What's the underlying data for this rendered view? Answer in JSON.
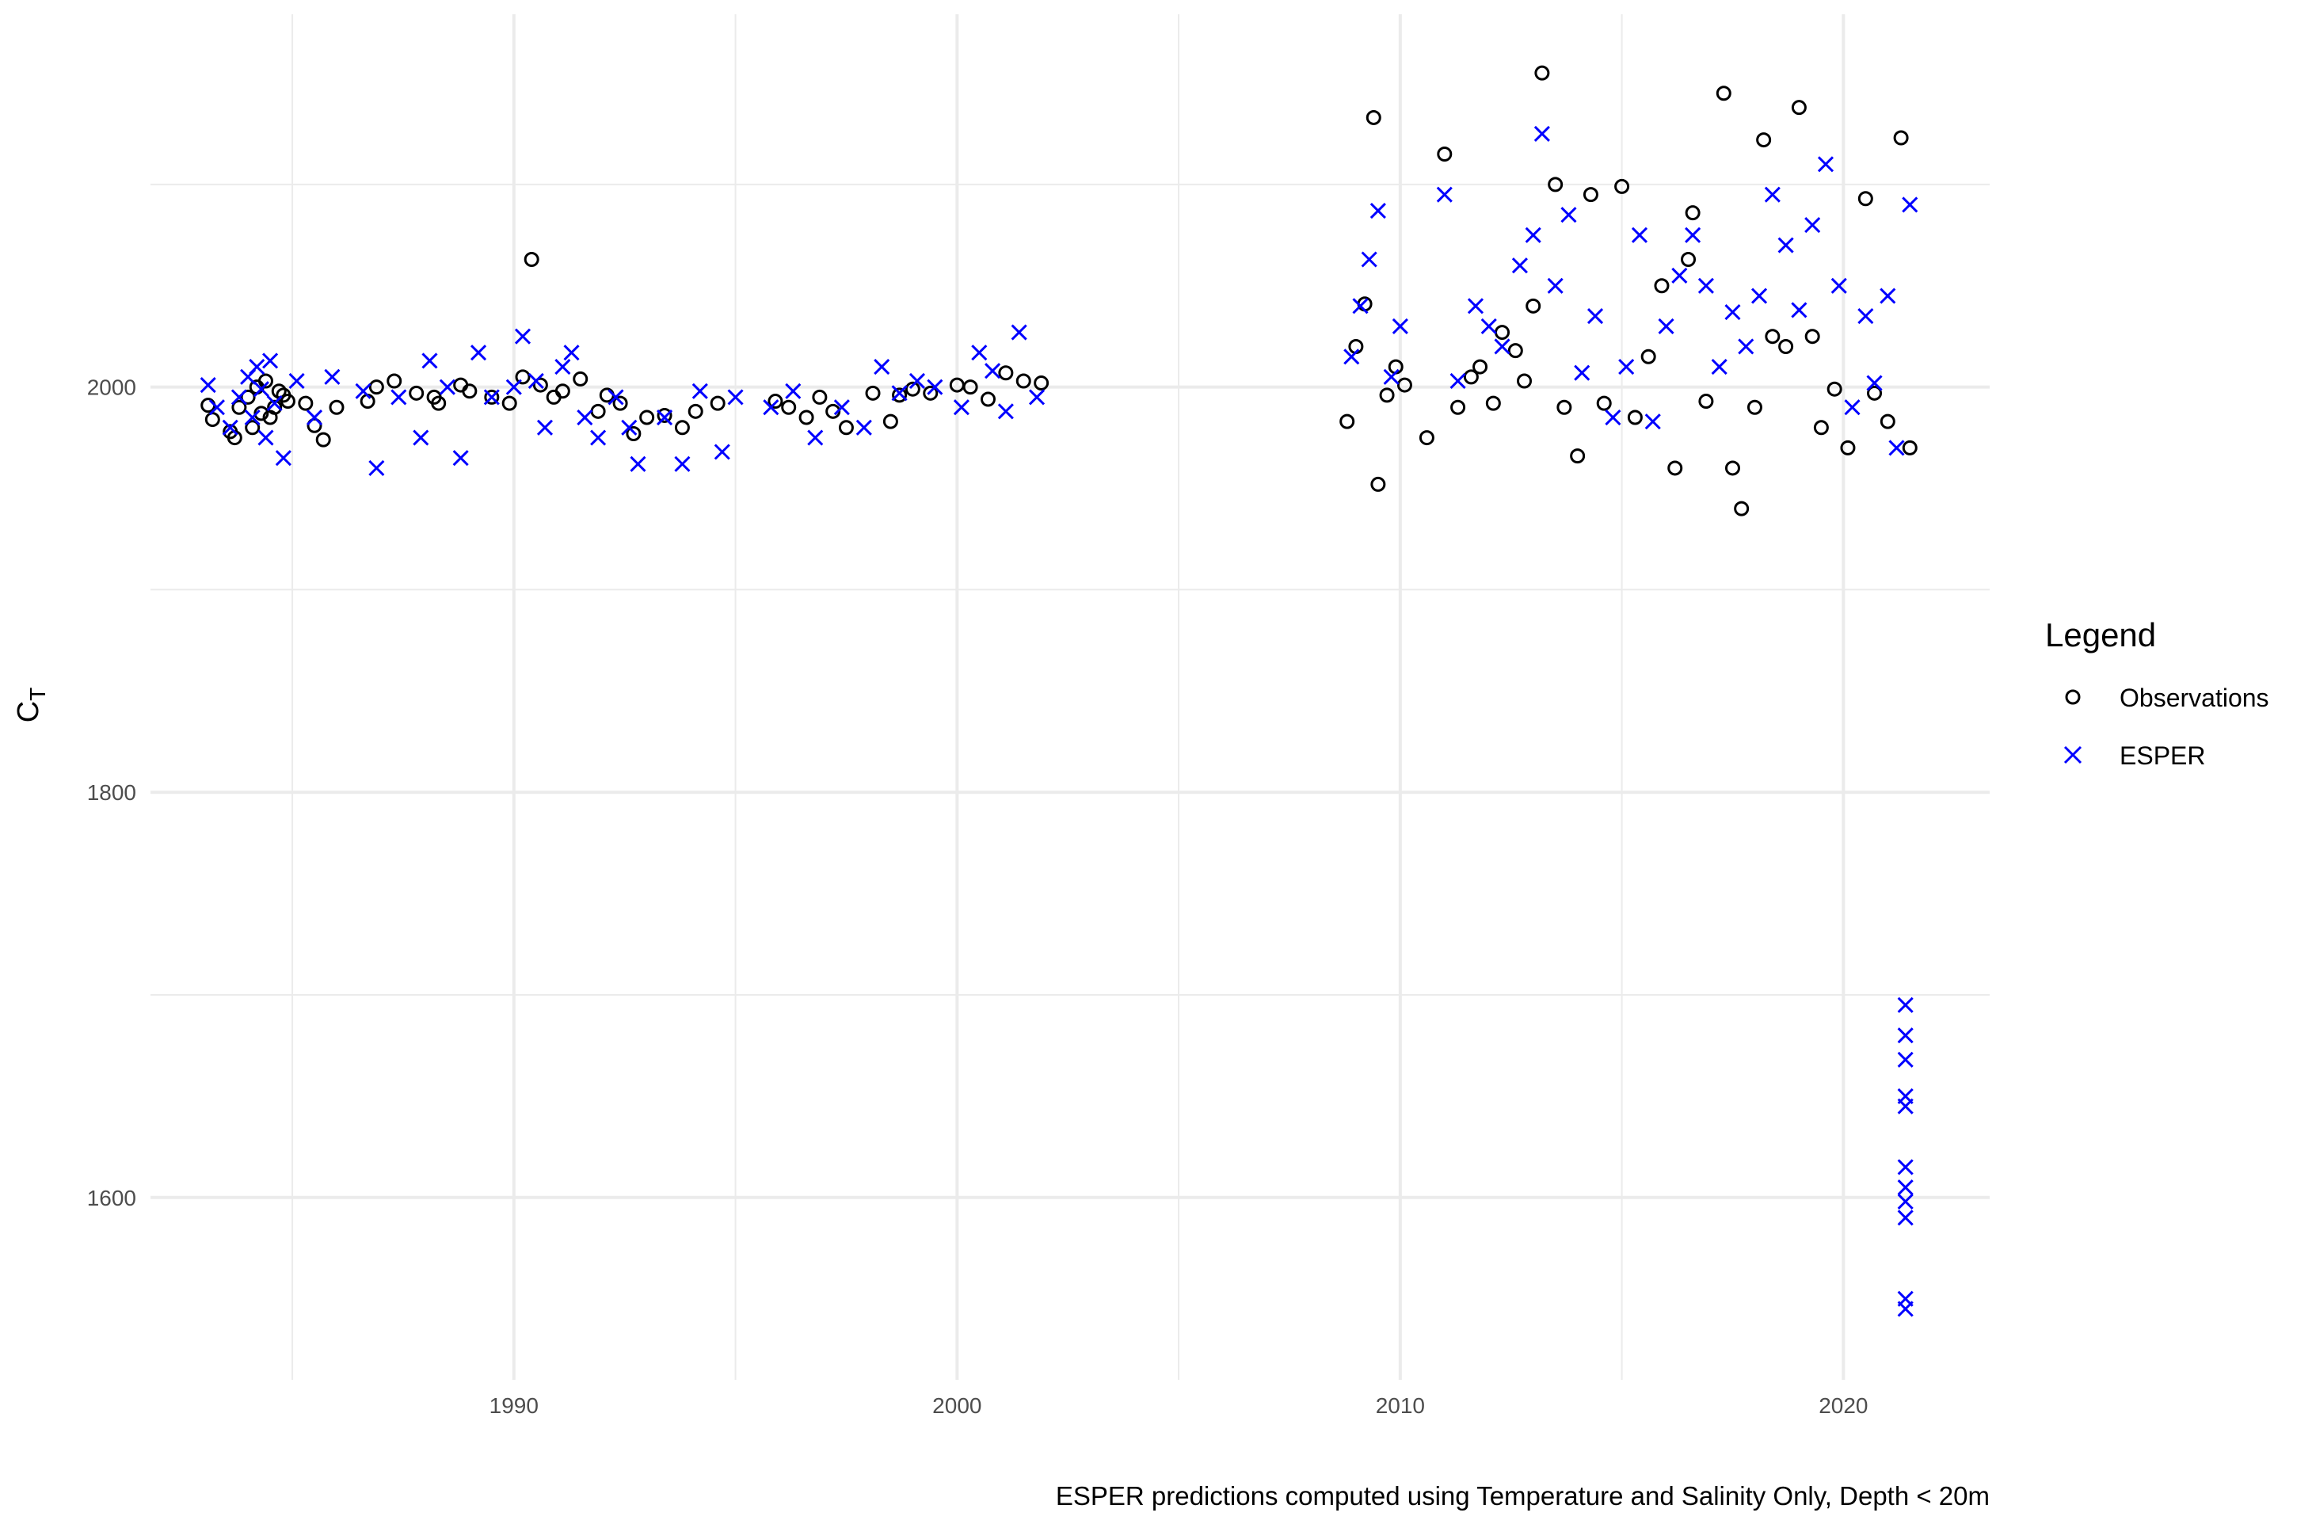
{
  "chart_data": {
    "type": "scatter",
    "title": "",
    "xlabel": "",
    "ylabel": "C",
    "ylabel_subscript": "T",
    "xlim": [
      1981.8,
      2023.3
    ],
    "ylim": [
      1510,
      2184
    ],
    "x_ticks": [
      1990,
      2000,
      2010,
      2020
    ],
    "x_tick_labels": [
      "1990",
      "2000",
      "2010",
      "2020"
    ],
    "x_minor_gridlines": [
      1985,
      1995,
      2005,
      2015
    ],
    "y_ticks": [
      1600,
      1800,
      2000
    ],
    "y_tick_labels": [
      "1600",
      "1800",
      "2000"
    ],
    "y_minor_gridlines": [
      1700,
      1900,
      2100
    ],
    "grid": true,
    "caption": "ESPER predictions computed using Temperature and Salinity Only, Depth < 20m",
    "legend": {
      "title": "Legend",
      "position": "right",
      "entries": [
        {
          "label": "Observations",
          "marker": "circle",
          "color": "#000000"
        },
        {
          "label": "ESPER",
          "marker": "x",
          "color": "#0000ff"
        }
      ]
    },
    "series": [
      {
        "name": "Observations",
        "marker": "circle",
        "color": "#000000",
        "x": [
          1983.1,
          1983.2,
          1983.6,
          1983.7,
          1983.8,
          1984.0,
          1984.1,
          1984.2,
          1984.3,
          1984.4,
          1984.5,
          1984.6,
          1984.7,
          1984.8,
          1984.9,
          1985.3,
          1985.5,
          1985.7,
          1986.0,
          1986.7,
          1986.9,
          1987.3,
          1987.8,
          1988.2,
          1988.3,
          1988.8,
          1989.0,
          1989.5,
          1989.9,
          1990.2,
          1990.4,
          1990.6,
          1990.9,
          1991.1,
          1991.5,
          1991.9,
          1992.1,
          1992.4,
          1992.7,
          1993.0,
          1993.4,
          1993.8,
          1994.1,
          1994.6,
          1995.9,
          1996.2,
          1996.6,
          1996.9,
          1997.2,
          1997.5,
          1998.1,
          1998.5,
          1998.7,
          1999.0,
          1999.4,
          2000.0,
          2000.3,
          2000.7,
          2001.1,
          2001.5,
          2001.9,
          2008.8,
          2009.0,
          2009.2,
          2009.4,
          2009.5,
          2009.7,
          2009.9,
          2010.1,
          2010.6,
          2011.0,
          2011.3,
          2011.6,
          2011.8,
          2012.1,
          2012.3,
          2012.6,
          2012.8,
          2013.0,
          2013.2,
          2013.5,
          2013.7,
          2014.0,
          2014.3,
          2014.6,
          2015.0,
          2015.3,
          2015.6,
          2015.9,
          2016.2,
          2016.5,
          2016.6,
          2016.9,
          2017.3,
          2017.5,
          2017.7,
          2018.0,
          2018.2,
          2018.4,
          2018.7,
          2019.0,
          2019.3,
          2019.5,
          2019.8,
          2020.1,
          2020.5,
          2020.7,
          2021.0,
          2021.3,
          2021.5
        ],
        "y": [
          1991,
          1984,
          1978,
          1975,
          1990,
          1995,
          1980,
          2000,
          1987,
          2003,
          1985,
          1990,
          1998,
          1996,
          1993,
          1992,
          1981,
          1974,
          1990,
          1993,
          2000,
          2003,
          1997,
          1995,
          1992,
          2001,
          1998,
          1995,
          1992,
          2005,
          2063,
          2001,
          1995,
          1998,
          2004,
          1988,
          1996,
          1992,
          1977,
          1985,
          1986,
          1980,
          1988,
          1992,
          1993,
          1990,
          1985,
          1995,
          1988,
          1980,
          1997,
          1983,
          1996,
          1999,
          1997,
          2001,
          2000,
          1994,
          2007,
          2003,
          2002,
          1983,
          2020,
          2041,
          2133,
          1952,
          1996,
          2010,
          2001,
          1975,
          2115,
          1990,
          2005,
          2010,
          1992,
          2027,
          2018,
          2003,
          2040,
          2155,
          2100,
          1990,
          1966,
          2095,
          1992,
          2099,
          1985,
          2015,
          2050,
          1960,
          2063,
          2086,
          1993,
          2145,
          1960,
          1940,
          1990,
          2122,
          2025,
          2020,
          2138,
          2025,
          1980,
          1999,
          1970,
          2093,
          1997,
          1983,
          2123,
          1970
        ]
      },
      {
        "name": "ESPER",
        "marker": "x",
        "color": "#0000ff",
        "x": [
          1983.1,
          1983.3,
          1983.6,
          1983.8,
          1984.0,
          1984.1,
          1984.2,
          1984.3,
          1984.4,
          1984.5,
          1984.6,
          1984.8,
          1985.1,
          1985.5,
          1985.9,
          1986.6,
          1986.9,
          1987.4,
          1987.9,
          1988.1,
          1988.5,
          1988.8,
          1989.2,
          1989.5,
          1990.0,
          1990.2,
          1990.5,
          1990.7,
          1991.1,
          1991.3,
          1991.6,
          1991.9,
          1992.3,
          1992.6,
          1992.8,
          1993.4,
          1993.8,
          1994.2,
          1994.7,
          1995.0,
          1995.8,
          1996.3,
          1996.8,
          1997.4,
          1997.9,
          1998.3,
          1998.7,
          1999.1,
          1999.5,
          2000.1,
          2000.5,
          2000.8,
          2001.1,
          2001.4,
          2001.8,
          2008.9,
          2009.1,
          2009.3,
          2009.5,
          2009.8,
          2010.0,
          2011.0,
          2011.3,
          2011.7,
          2012.0,
          2012.3,
          2012.7,
          2013.0,
          2013.2,
          2013.5,
          2013.8,
          2014.1,
          2014.4,
          2014.8,
          2015.1,
          2015.4,
          2015.7,
          2016.0,
          2016.3,
          2016.6,
          2016.9,
          2017.2,
          2017.5,
          2017.8,
          2018.1,
          2018.4,
          2018.7,
          2019.0,
          2019.3,
          2019.6,
          2019.9,
          2020.2,
          2020.5,
          2020.7,
          2021.0,
          2021.2,
          2021.4,
          2021.4,
          2021.4,
          2021.4,
          2021.4,
          2021.4,
          2021.4,
          2021.4,
          2021.4,
          2021.4,
          2021.4,
          2021.5
        ],
        "y": [
          2001,
          1990,
          1980,
          1995,
          2005,
          1985,
          2010,
          1999,
          1975,
          2013,
          1992,
          1965,
          2003,
          1985,
          2005,
          1998,
          1960,
          1995,
          1975,
          2013,
          2000,
          1965,
          2017,
          1995,
          2000,
          2025,
          2003,
          1980,
          2010,
          2017,
          1985,
          1975,
          1995,
          1980,
          1962,
          1985,
          1962,
          1998,
          1968,
          1995,
          1990,
          1998,
          1975,
          1990,
          1980,
          2010,
          1997,
          2003,
          2000,
          1990,
          2017,
          2008,
          1988,
          2027,
          1995,
          2015,
          2040,
          2063,
          2087,
          2005,
          2030,
          2095,
          2003,
          2040,
          2030,
          2020,
          2060,
          2075,
          2125,
          2050,
          2085,
          2007,
          2035,
          1985,
          2010,
          2075,
          1983,
          2030,
          2055,
          2075,
          2050,
          2010,
          2037,
          2020,
          2045,
          2095,
          2070,
          2038,
          2080,
          2110,
          2050,
          1990,
          2035,
          2002,
          2045,
          1970,
          1695,
          1680,
          1668,
          1645,
          1650,
          1615,
          1605,
          1590,
          1598,
          1550,
          1545,
          2090
        ]
      }
    ]
  }
}
